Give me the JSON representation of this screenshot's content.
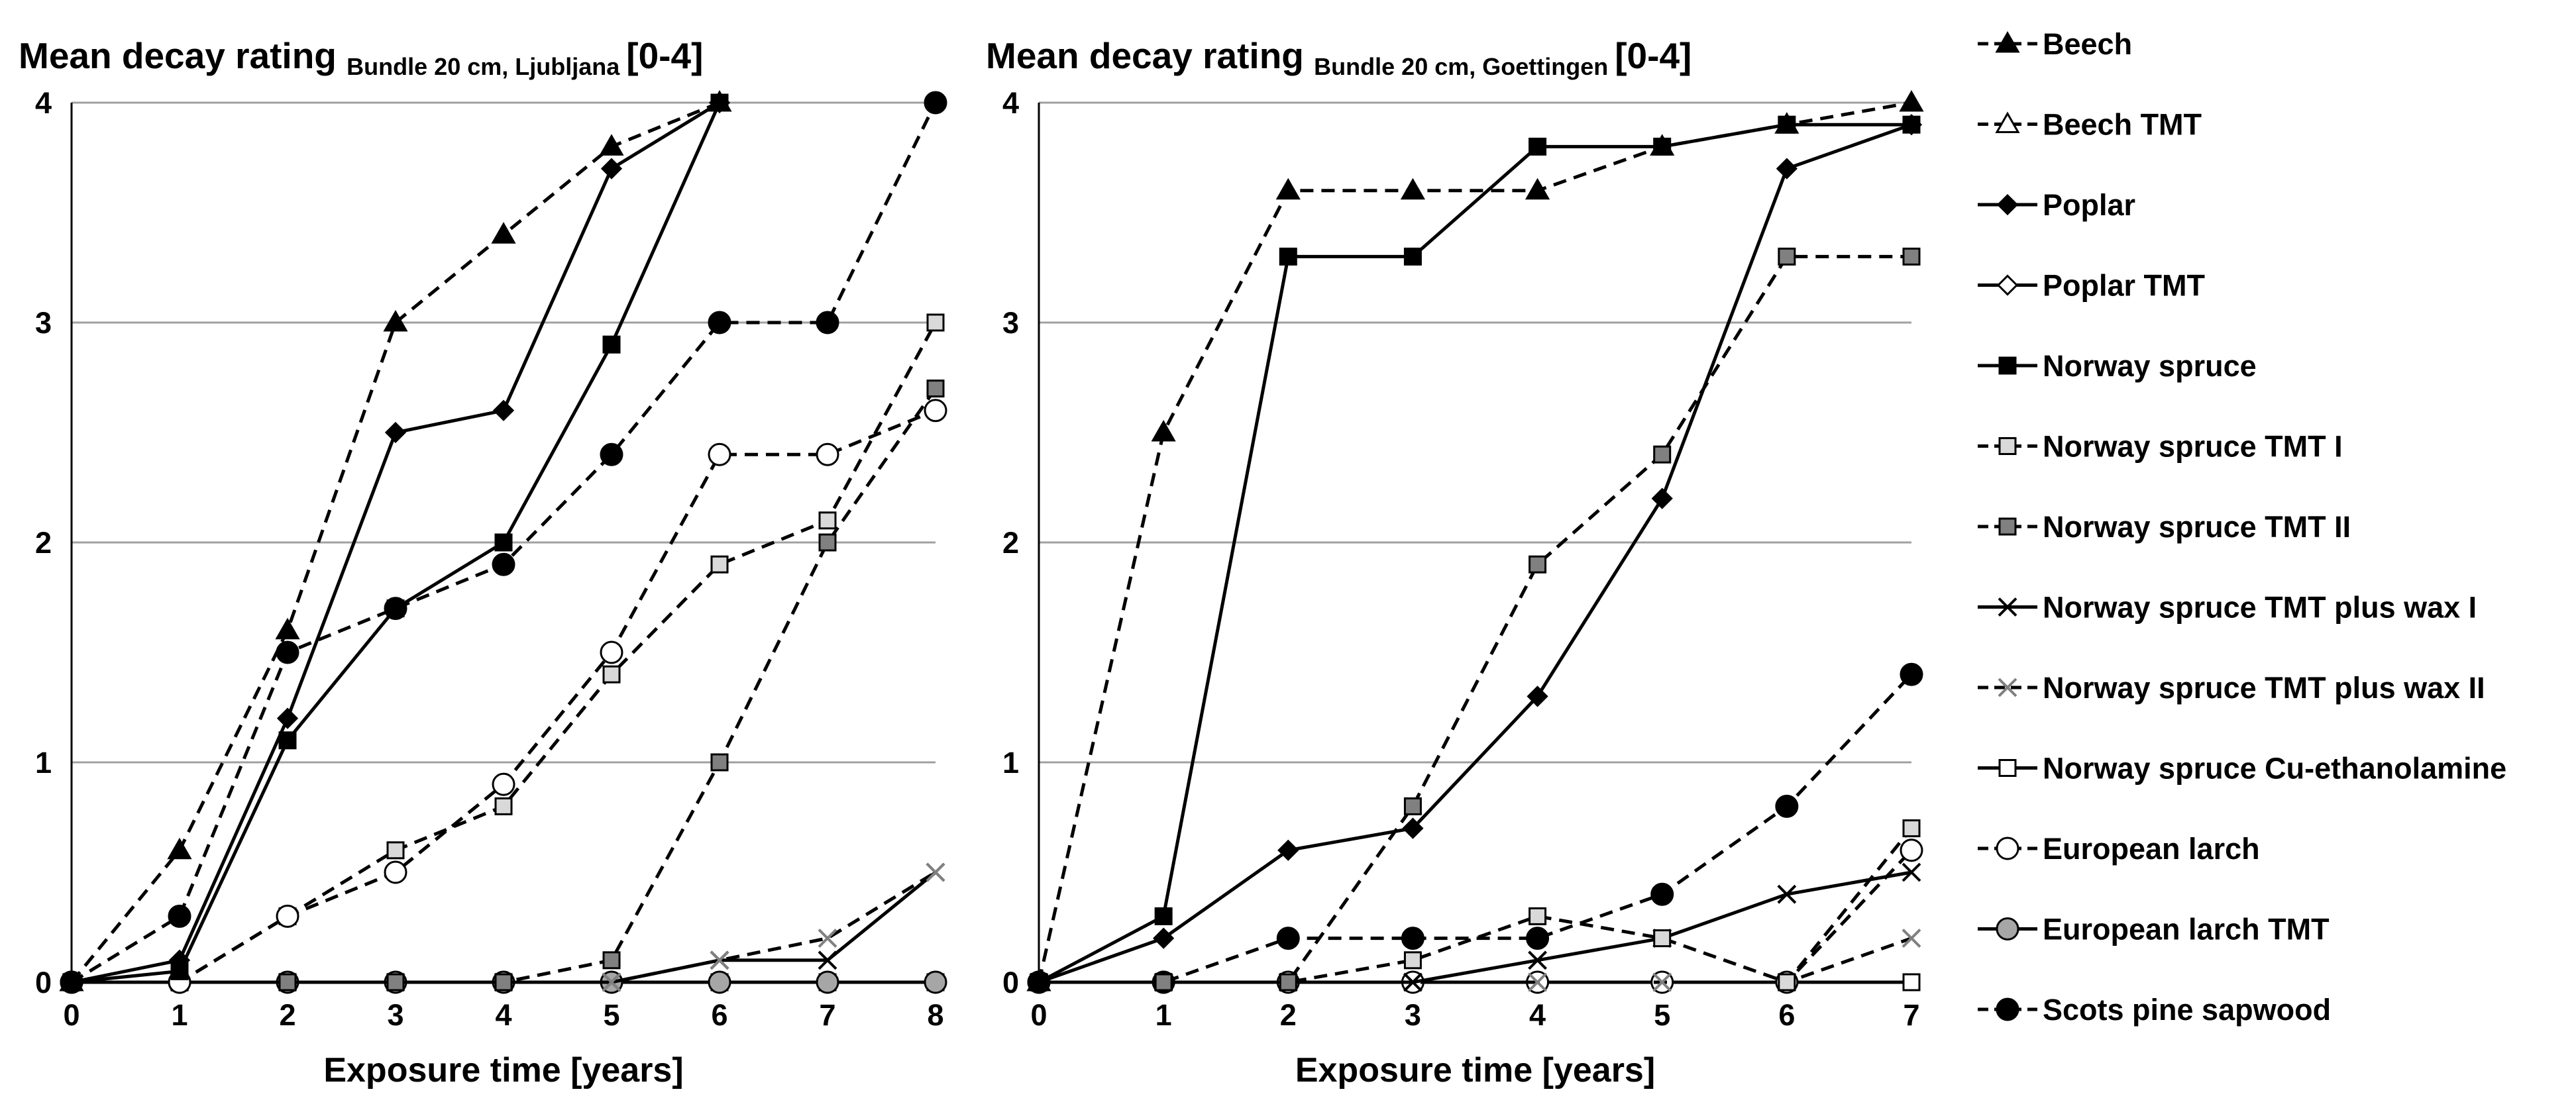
{
  "legend": [
    {
      "name": "Beech",
      "marker": "triangle",
      "fill": "#000000",
      "dash": true
    },
    {
      "name": "Beech TMT",
      "marker": "triangle",
      "fill": "#ffffff",
      "dash": true
    },
    {
      "name": "Poplar",
      "marker": "diamond",
      "fill": "#000000",
      "dash": false
    },
    {
      "name": "Poplar TMT",
      "marker": "diamond",
      "fill": "#ffffff",
      "dash": false
    },
    {
      "name": "Norway spruce",
      "marker": "square",
      "fill": "#000000",
      "dash": false
    },
    {
      "name": "Norway spruce TMT I",
      "marker": "square",
      "fill": "#d9d9d9",
      "dash": true
    },
    {
      "name": "Norway spruce TMT II",
      "marker": "square",
      "fill": "#808080",
      "dash": true
    },
    {
      "name": "Norway spruce TMT plus wax I",
      "marker": "x",
      "fill": "#000000",
      "dash": false
    },
    {
      "name": "Norway spruce TMT plus wax II",
      "marker": "x",
      "fill": "#808080",
      "dash": true
    },
    {
      "name": "Norway spruce Cu-ethanolamine",
      "marker": "square",
      "fill": "#ffffff",
      "dash": false
    },
    {
      "name": "European larch",
      "marker": "circle",
      "fill": "#ffffff",
      "dash": true
    },
    {
      "name": "European larch TMT",
      "marker": "circle",
      "fill": "#a6a6a6",
      "dash": false
    },
    {
      "name": "Scots pine sapwood",
      "marker": "circle",
      "fill": "#000000",
      "dash": true
    }
  ],
  "chart_data": [
    {
      "type": "line",
      "title_main": "Mean decay rating",
      "title_sub": "Bundle 20 cm, Ljubljana",
      "title_range": "[0-4]",
      "xlabel": "Exposure time [years]",
      "ylabel": "",
      "x": [
        0,
        1,
        2,
        3,
        4,
        5,
        6,
        7,
        8
      ],
      "ylim": [
        0,
        4
      ],
      "yticks": [
        0,
        1,
        2,
        3,
        4
      ],
      "grid": true,
      "series": [
        {
          "name": "Norway spruce Cu-ethanolamine",
          "values": [
            0,
            0,
            0,
            0,
            0,
            0,
            0,
            0,
            0
          ]
        },
        {
          "name": "European larch TMT",
          "values": [
            0,
            0,
            0,
            0,
            0,
            0,
            0,
            0,
            0
          ]
        },
        {
          "name": "Norway spruce TMT plus wax I",
          "values": [
            0,
            0,
            0,
            0,
            0,
            0,
            0.1,
            0.1,
            0.5
          ]
        },
        {
          "name": "Norway spruce TMT plus wax II",
          "values": [
            0,
            0,
            0,
            0,
            0,
            0,
            0.1,
            0.2,
            0.5
          ]
        },
        {
          "name": "Norway spruce TMT II",
          "values": [
            0,
            0,
            0,
            0,
            0,
            0.1,
            1.0,
            2.0,
            2.7
          ]
        },
        {
          "name": "Norway spruce TMT I",
          "values": [
            0,
            0,
            0.3,
            0.6,
            0.8,
            1.4,
            1.9,
            2.1,
            3.0
          ]
        },
        {
          "name": "European larch",
          "values": [
            0,
            0,
            0.3,
            0.5,
            0.9,
            1.5,
            2.4,
            2.4,
            2.6
          ]
        },
        {
          "name": "Scots pine sapwood",
          "values": [
            0,
            0.3,
            1.5,
            1.7,
            1.9,
            2.4,
            3.0,
            3.0,
            4.0
          ]
        },
        {
          "name": "Norway spruce",
          "values": [
            0,
            0.05,
            1.1,
            1.7,
            2.0,
            2.9,
            4.0,
            null,
            null
          ]
        },
        {
          "name": "Poplar",
          "values": [
            0,
            0.1,
            1.2,
            2.5,
            2.6,
            3.7,
            4.0,
            null,
            null
          ]
        },
        {
          "name": "Beech",
          "values": [
            0,
            0.6,
            1.6,
            3.0,
            3.4,
            3.8,
            4.0,
            null,
            null
          ]
        }
      ]
    },
    {
      "type": "line",
      "title_main": "Mean decay rating",
      "title_sub": "Bundle 20 cm, Goettingen",
      "title_range": "[0-4]",
      "xlabel": "Exposure time [years]",
      "ylabel": "",
      "x": [
        0,
        1,
        2,
        3,
        4,
        5,
        6,
        7
      ],
      "ylim": [
        0,
        4
      ],
      "yticks": [
        0,
        1,
        2,
        3,
        4
      ],
      "grid": true,
      "series": [
        {
          "name": "Norway spruce Cu-ethanolamine",
          "values": [
            0,
            0,
            0,
            0,
            0,
            0,
            0,
            0
          ]
        },
        {
          "name": "European larch",
          "values": [
            0,
            0,
            0,
            0,
            0,
            0,
            0,
            0.6
          ]
        },
        {
          "name": "Norway spruce TMT plus wax II",
          "values": [
            0,
            0,
            0,
            0,
            0,
            0,
            0,
            0.2
          ]
        },
        {
          "name": "Norway spruce TMT plus wax I",
          "values": [
            0,
            0,
            0,
            0,
            0.1,
            0.2,
            0.4,
            0.5
          ]
        },
        {
          "name": "Norway spruce TMT I",
          "values": [
            0,
            0,
            0,
            0.1,
            0.3,
            0.2,
            0,
            0.7
          ]
        },
        {
          "name": "Scots pine sapwood",
          "values": [
            0,
            0,
            0.2,
            0.2,
            0.2,
            0.4,
            0.8,
            1.4
          ]
        },
        {
          "name": "Norway spruce TMT II",
          "values": [
            0,
            0,
            0,
            0.8,
            1.9,
            2.4,
            3.3,
            3.3
          ]
        },
        {
          "name": "Poplar",
          "values": [
            0,
            0.2,
            0.6,
            0.7,
            1.3,
            2.2,
            3.7,
            3.9
          ]
        },
        {
          "name": "Norway spruce",
          "values": [
            0,
            0.3,
            3.3,
            3.3,
            3.8,
            3.8,
            3.9,
            3.9
          ]
        },
        {
          "name": "Beech",
          "values": [
            0,
            2.5,
            3.6,
            3.6,
            3.6,
            3.8,
            3.9,
            4.0
          ]
        }
      ]
    }
  ]
}
